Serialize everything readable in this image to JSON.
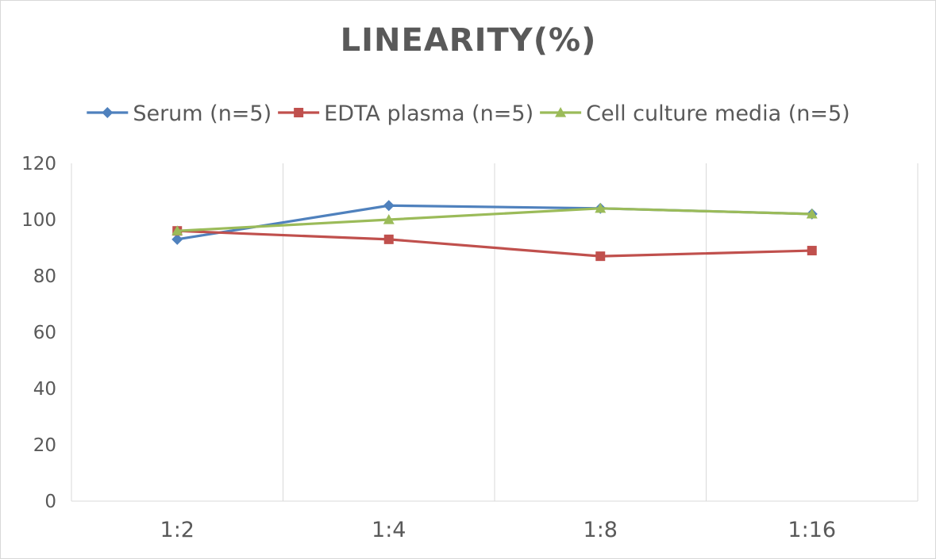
{
  "chart_data": {
    "type": "line",
    "title": "LINEARITY(%)",
    "categories": [
      "1:2",
      "1:4",
      "1:8",
      "1:16"
    ],
    "ylim": [
      0,
      120
    ],
    "yticks": [
      0,
      20,
      40,
      60,
      80,
      100,
      120
    ],
    "grid": "vertical",
    "legend_position": "top",
    "series": [
      {
        "name": "Serum (n=5)",
        "values": [
          93,
          105,
          104,
          102
        ],
        "color": "#4f81bd",
        "marker": "diamond"
      },
      {
        "name": "EDTA plasma (n=5)",
        "values": [
          96,
          93,
          87,
          89
        ],
        "color": "#c0504d",
        "marker": "square"
      },
      {
        "name": "Cell culture media (n=5)",
        "values": [
          96,
          100,
          104,
          102
        ],
        "color": "#9bbb59",
        "marker": "triangle"
      }
    ]
  }
}
